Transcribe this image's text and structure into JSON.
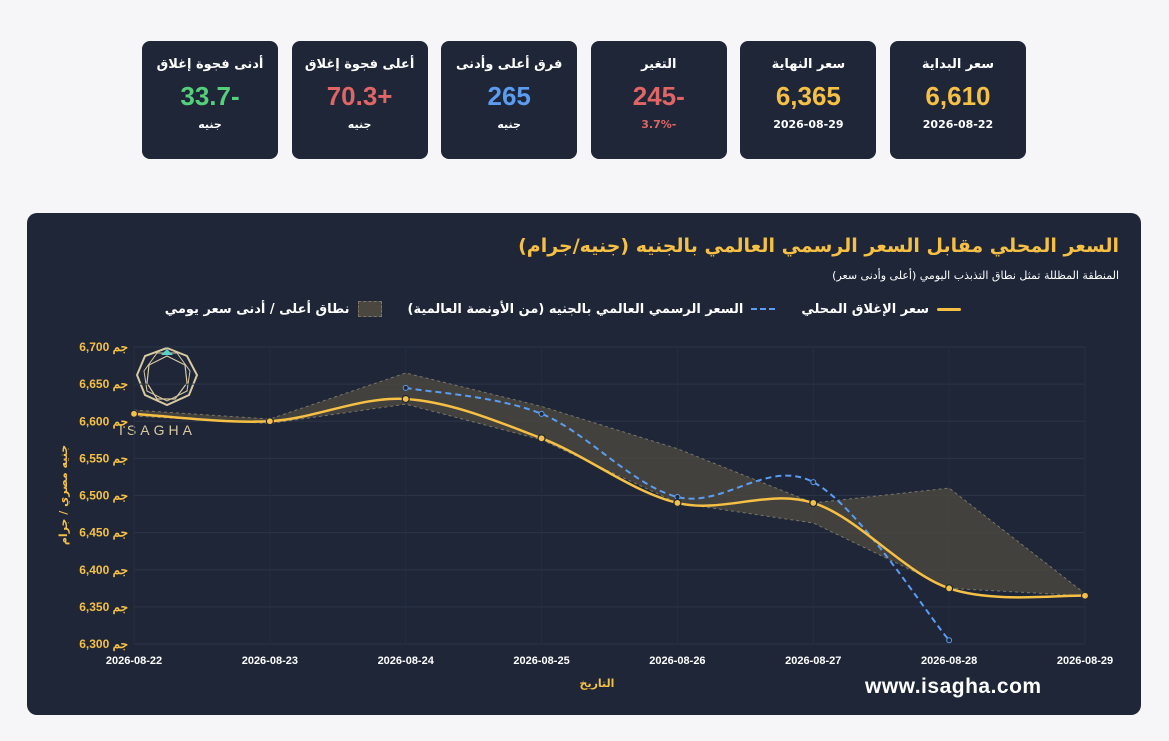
{
  "cards": [
    {
      "label": "سعر البداية",
      "value": "6,610",
      "sub": "2026-08-22",
      "color": "gold"
    },
    {
      "label": "سعر النهاية",
      "value": "6,365",
      "sub": "2026-08-29",
      "color": "gold"
    },
    {
      "label": "التغير",
      "value": "245-",
      "sub": "3.7%-",
      "color": "red"
    },
    {
      "label": "فرق أعلى وأدنى",
      "value": "265",
      "sub": "جنيه",
      "color": "blue"
    },
    {
      "label": "أعلى فجوة إغلاق",
      "value": "70.3+",
      "sub": "جنيه",
      "color": "red"
    },
    {
      "label": "أدنى فجوة إغلاق",
      "value": "33.7-",
      "sub": "جنيه",
      "color": "green"
    }
  ],
  "watermark": {
    "logo_text": "ISAGHA",
    "url": "www.isagha.com"
  },
  "chart_data": {
    "type": "line",
    "title": "السعر المحلي مقابل السعر الرسمي العالمي بالجنيه (جنيه/جرام)",
    "subtitle": "المنطقة المظللة تمثل نطاق التذبذب اليومي (أعلى وأدنى سعر)",
    "xlabel": "التاريخ",
    "ylabel": "جنيه مصري / جرام",
    "ylim": [
      6300,
      6700
    ],
    "y_ticks": [
      6700,
      6650,
      6600,
      6550,
      6500,
      6450,
      6400,
      6350,
      6300
    ],
    "y_tick_suffix": "جم",
    "categories": [
      "2026-08-22",
      "2026-08-23",
      "2026-08-24",
      "2026-08-25",
      "2026-08-26",
      "2026-08-27",
      "2026-08-28",
      "2026-08-29"
    ],
    "legend_position": "top",
    "colors": {
      "local": "#f5c044",
      "global": "#5b9cf0",
      "band": "#4a473e"
    },
    "series": [
      {
        "name": "سعر الإغلاق المحلي",
        "key": "local",
        "values": [
          6610,
          6600,
          6630,
          6577,
          6490,
          6490,
          6375,
          6365
        ]
      },
      {
        "name": "السعر الرسمي العالمي بالجنيه (من الأونصة العالمية)",
        "key": "global",
        "values": [
          null,
          null,
          6645,
          6610,
          6498,
          6518,
          6305,
          null
        ]
      },
      {
        "name": "نطاق أعلى / أدنى سعر يومي",
        "key": "band",
        "high": [
          6615,
          6603,
          6665,
          6620,
          6563,
          6490,
          6510,
          6368
        ],
        "low": [
          6607,
          6597,
          6623,
          6575,
          6490,
          6463,
          6375,
          6365
        ]
      }
    ]
  }
}
